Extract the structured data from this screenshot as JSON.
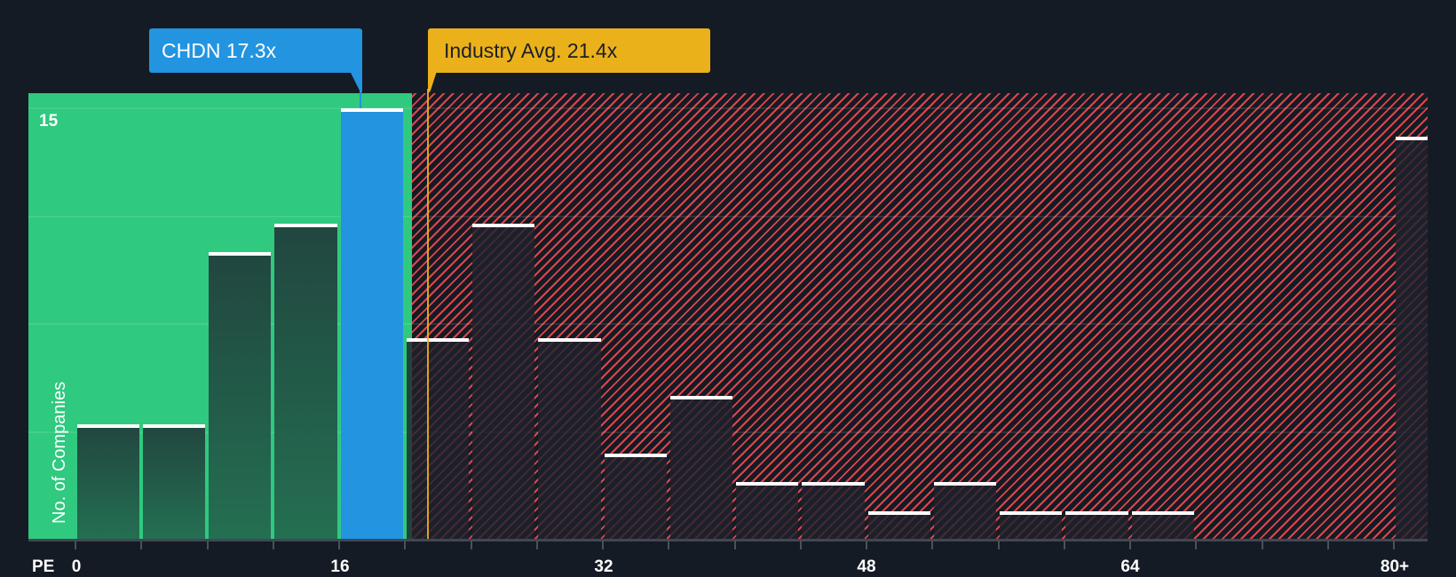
{
  "chart_data": {
    "type": "bar",
    "title": "",
    "xlabel": "PE",
    "ylabel": "No. of Companies",
    "x_ticks": [
      "0",
      "16",
      "32",
      "48",
      "64",
      "80+"
    ],
    "y_ticks": [
      "15"
    ],
    "ylim": [
      0,
      16
    ],
    "bin_width": 4,
    "categories": [
      "0-4",
      "4-8",
      "8-12",
      "12-16",
      "16-20",
      "20-24",
      "24-28",
      "28-32",
      "32-36",
      "36-40",
      "40-44",
      "44-48",
      "48-52",
      "52-56",
      "56-60",
      "60-64",
      "64-68",
      "68-72",
      "72-76",
      "76-80",
      "80+"
    ],
    "values": [
      4,
      4,
      10,
      11,
      15,
      7,
      11,
      7,
      3,
      5,
      2,
      2,
      1,
      2,
      1,
      1,
      1,
      0,
      0,
      0,
      14
    ],
    "subject": {
      "label": "CHDN 17.3x",
      "ticker": "CHDN",
      "value": 17.3,
      "bin_index": 4
    },
    "industry_avg": {
      "label": "Industry Avg. 21.4x",
      "value": 21.4
    },
    "fair_zone_upper": 20.4,
    "grid": true,
    "legend": null
  },
  "colors": {
    "background": "#151b24",
    "fair_zone": "#2fc97f",
    "overvalued_hatch": "#e0454a",
    "subject_bar": "#2394df",
    "industry_marker": "#ebb11b",
    "bar_cap": "#ffffff"
  },
  "labels": {
    "subject_callout": "CHDN 17.3x",
    "industry_callout": "Industry Avg. 21.4x",
    "x_axis_title": "PE",
    "y_axis_title": "No. of Companies",
    "y_tick_15": "15",
    "x_tick_0": "0",
    "x_tick_16": "16",
    "x_tick_32": "32",
    "x_tick_48": "48",
    "x_tick_64": "64",
    "x_tick_80": "80+"
  }
}
